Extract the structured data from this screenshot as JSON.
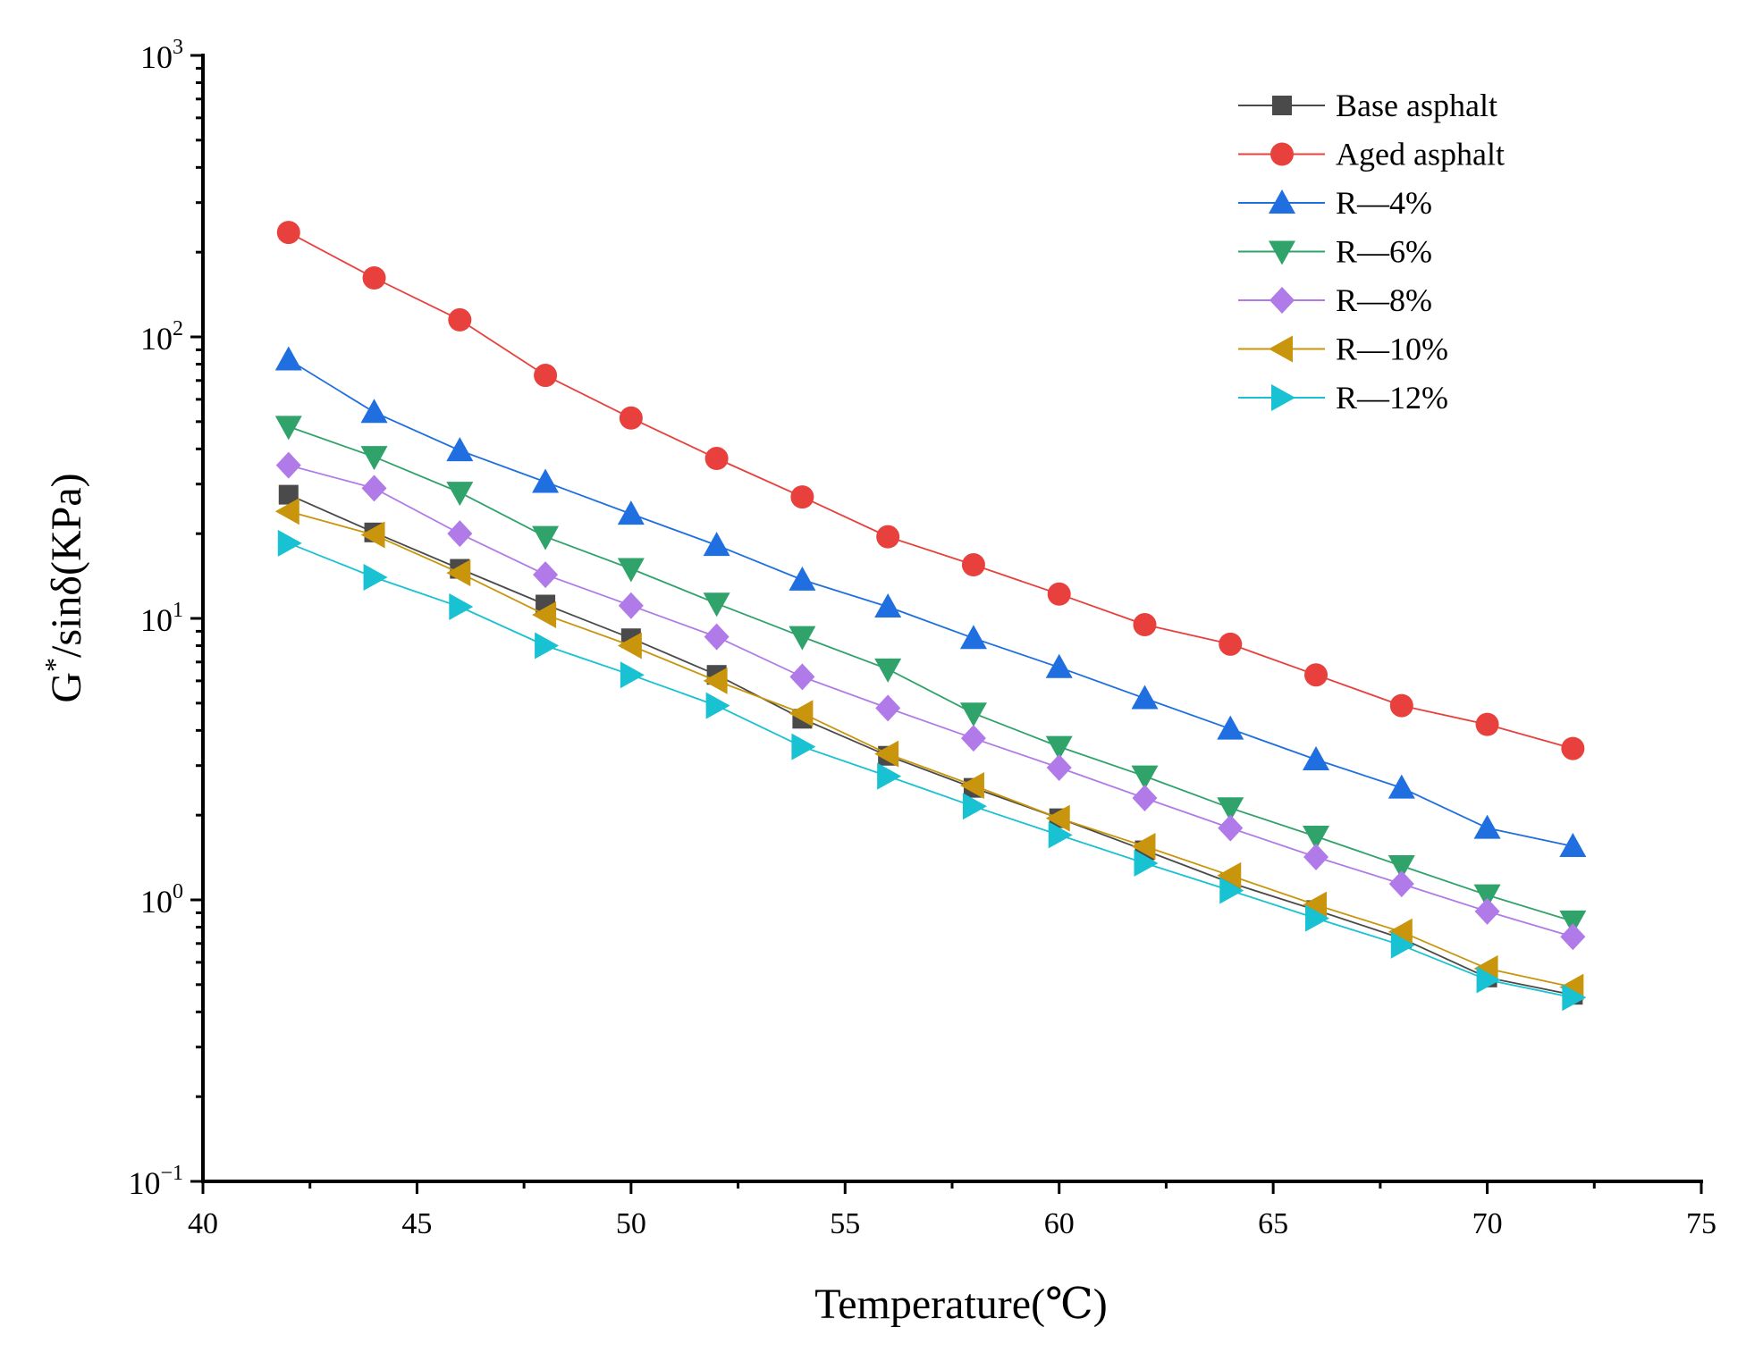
{
  "chart_data": {
    "type": "line",
    "title": "",
    "xlabel": "Temperature(℃)",
    "ylabel": "G*/sinδ(KPa)",
    "ylabel_parts": {
      "base": "G",
      "sup": "*",
      "rest": "/sinδ(KPa)"
    },
    "yscale": "log",
    "xlim": [
      40,
      75
    ],
    "ylim": [
      0.1,
      1000
    ],
    "xticks": [
      40,
      45,
      50,
      55,
      60,
      65,
      70,
      75
    ],
    "xtick_labels": [
      "40",
      "45",
      "50",
      "55",
      "60",
      "65",
      "70",
      "75"
    ],
    "yticks": [
      {
        "value": 0.1,
        "base": "10",
        "exp": "−1"
      },
      {
        "value": 1,
        "base": "10",
        "exp": "0"
      },
      {
        "value": 10,
        "base": "10",
        "exp": "1"
      },
      {
        "value": 100,
        "base": "10",
        "exp": "2"
      },
      {
        "value": 1000,
        "base": "10",
        "exp": "3"
      }
    ],
    "grid": false,
    "legend_position": "top-right",
    "x": [
      42,
      44,
      46,
      48,
      50,
      52,
      54,
      56,
      58,
      60,
      62,
      64,
      66,
      68,
      70,
      72
    ],
    "series": [
      {
        "name": "Base asphalt",
        "color": "#4a4a4a",
        "marker": "square",
        "values": [
          27.5,
          20.2,
          15.0,
          11.2,
          8.5,
          6.3,
          4.4,
          3.25,
          2.5,
          1.95,
          1.5,
          1.15,
          0.92,
          0.73,
          0.53,
          0.46
        ]
      },
      {
        "name": "Aged asphalt",
        "color": "#e8403c",
        "marker": "circle",
        "values": [
          235,
          162,
          115,
          73,
          51.5,
          37,
          27,
          19.5,
          15.5,
          12.2,
          9.5,
          8.1,
          6.3,
          4.9,
          4.2,
          3.45
        ]
      },
      {
        "name": "R—4%",
        "color": "#1f6fe0",
        "marker": "triangle-up",
        "values": [
          83,
          54,
          39.5,
          30.5,
          23.5,
          18.2,
          13.7,
          11.0,
          8.5,
          6.7,
          5.2,
          4.05,
          3.15,
          2.5,
          1.8,
          1.55
        ]
      },
      {
        "name": "R—6%",
        "color": "#2fa36a",
        "marker": "triangle-down",
        "values": [
          48,
          37.5,
          28,
          19.5,
          15.0,
          11.3,
          8.6,
          6.6,
          4.6,
          3.5,
          2.75,
          2.12,
          1.68,
          1.32,
          1.04,
          0.84
        ]
      },
      {
        "name": "R—8%",
        "color": "#b07be8",
        "marker": "diamond",
        "values": [
          35,
          29,
          20,
          14.3,
          11.1,
          8.6,
          6.2,
          4.8,
          3.75,
          2.95,
          2.3,
          1.8,
          1.42,
          1.14,
          0.91,
          0.74
        ]
      },
      {
        "name": "R—10%",
        "color": "#c8950c",
        "marker": "triangle-left",
        "values": [
          24,
          19.8,
          14.5,
          10.3,
          8.0,
          6.0,
          4.6,
          3.3,
          2.55,
          1.95,
          1.55,
          1.22,
          0.96,
          0.77,
          0.57,
          0.49
        ]
      },
      {
        "name": "R—12%",
        "color": "#18c2d2",
        "marker": "triangle-right",
        "values": [
          18.5,
          14.0,
          11.0,
          8.0,
          6.3,
          4.9,
          3.5,
          2.75,
          2.15,
          1.7,
          1.35,
          1.08,
          0.86,
          0.69,
          0.52,
          0.45
        ]
      }
    ]
  }
}
